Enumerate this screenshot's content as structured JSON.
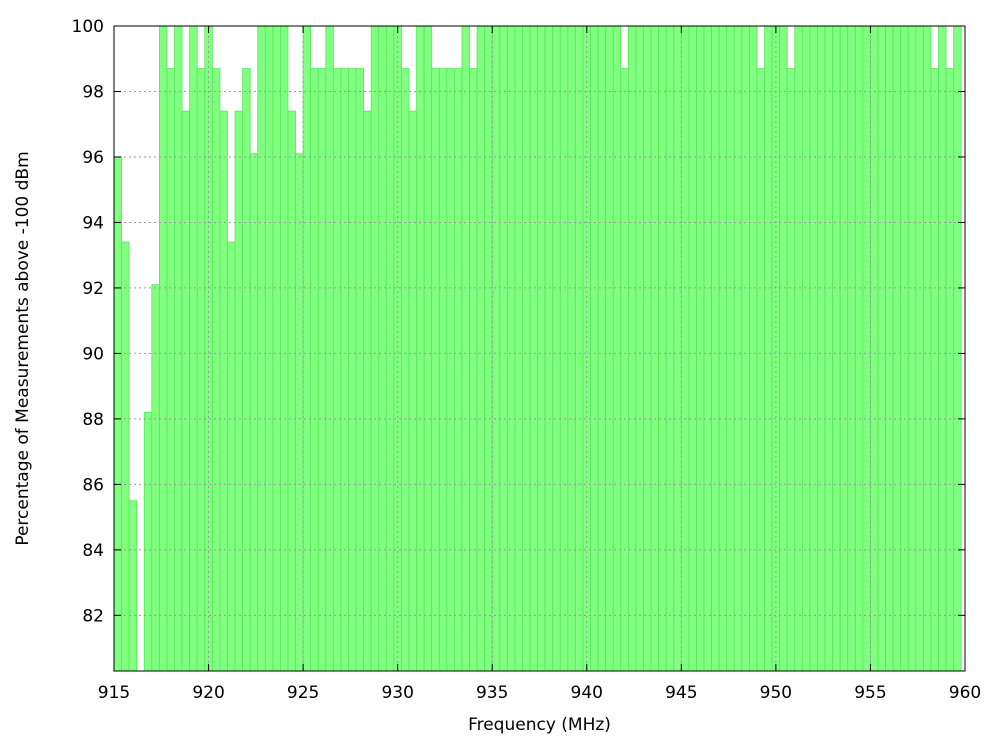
{
  "chart_data": {
    "type": "bar",
    "title": "",
    "xlabel": "Frequency (MHz)",
    "ylabel": "Percentage of Measurements above -100 dBm",
    "xlim": [
      915,
      960
    ],
    "ylim": [
      80.3,
      100
    ],
    "xticks": [
      915,
      920,
      925,
      930,
      935,
      940,
      945,
      950,
      955,
      960
    ],
    "yticks": [
      82,
      84,
      86,
      88,
      90,
      92,
      94,
      96,
      98,
      100
    ],
    "bar_width_mhz": 0.4,
    "grid": true,
    "legend": "none",
    "colors": {
      "bar": "#80ff80",
      "bar_edge": "#59e659"
    },
    "x": [
      915.2,
      915.6,
      916.0,
      916.4,
      916.8,
      917.2,
      917.6,
      918.0,
      918.4,
      918.8,
      919.2,
      919.6,
      920.0,
      920.4,
      920.8,
      921.2,
      921.6,
      922.0,
      922.4,
      922.8,
      923.2,
      923.6,
      924.0,
      924.4,
      924.8,
      925.2,
      925.6,
      926.0,
      926.4,
      926.8,
      927.2,
      927.6,
      928.0,
      928.4,
      928.8,
      929.2,
      929.6,
      930.0,
      930.4,
      930.8,
      931.2,
      931.6,
      932.0,
      932.4,
      932.8,
      933.2,
      933.6,
      934.0,
      934.4,
      934.8,
      935.2,
      935.6,
      936.0,
      936.4,
      936.8,
      937.2,
      937.6,
      938.0,
      938.4,
      938.8,
      939.2,
      939.6,
      940.0,
      940.4,
      940.8,
      941.2,
      941.6,
      942.0,
      942.4,
      942.8,
      943.2,
      943.6,
      944.0,
      944.4,
      944.8,
      945.2,
      945.6,
      946.0,
      946.4,
      946.8,
      947.2,
      947.6,
      948.0,
      948.4,
      948.8,
      949.2,
      949.6,
      950.0,
      950.4,
      950.8,
      951.2,
      951.6,
      952.0,
      952.4,
      952.8,
      953.2,
      953.6,
      954.0,
      954.4,
      954.8,
      955.2,
      955.6,
      956.0,
      956.4,
      956.8,
      957.2,
      957.6,
      958.0,
      958.4,
      958.8,
      959.2,
      959.6
    ],
    "values": [
      96.0,
      93.4,
      85.5,
      80.3,
      88.2,
      92.1,
      100,
      98.7,
      100,
      97.4,
      100,
      98.7,
      100,
      98.7,
      97.4,
      93.4,
      97.4,
      98.7,
      96.1,
      100,
      100,
      100,
      100,
      97.4,
      96.1,
      100,
      98.7,
      98.7,
      100,
      98.7,
      98.7,
      98.7,
      98.7,
      97.4,
      100,
      100,
      100,
      100,
      98.7,
      97.4,
      100,
      100,
      98.7,
      98.7,
      98.7,
      98.7,
      100,
      98.7,
      100,
      100,
      100,
      100,
      100,
      100,
      100,
      100,
      100,
      100,
      100,
      100,
      100,
      100,
      100,
      100,
      100,
      100,
      100,
      98.7,
      100,
      100,
      100,
      100,
      100,
      100,
      100,
      100,
      100,
      100,
      100,
      100,
      100,
      100,
      100,
      100,
      100,
      98.7,
      100,
      100,
      100,
      98.7,
      100,
      100,
      100,
      100,
      100,
      100,
      100,
      100,
      100,
      100,
      100,
      100,
      100,
      100,
      100,
      100,
      100,
      100,
      98.7,
      100,
      98.7,
      100
    ]
  }
}
